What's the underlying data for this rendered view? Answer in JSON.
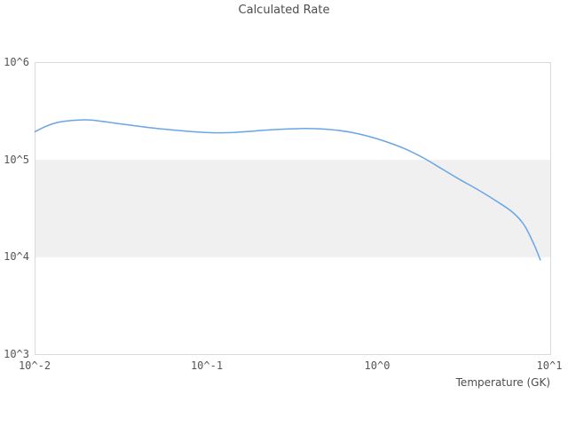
{
  "chart": {
    "title": "Calculated Rate",
    "x_axis_title": "Temperature (GK)",
    "x_tick_labels": [
      "10^-2",
      "10^-1",
      "10^0",
      "10^1"
    ],
    "y_tick_labels": [
      "10^6",
      "10^5",
      "10^4",
      "10^3"
    ],
    "colors": {
      "line": "#6aa5e5",
      "band_fill": "#f0f0f0",
      "frame": "#d9d9d9",
      "tick_text": "#555555",
      "title_text": "#4d4d4d",
      "background": "#ffffff"
    }
  },
  "chart_data": {
    "type": "line",
    "title": "Calculated Rate",
    "xlabel": "Temperature (GK)",
    "ylabel": "",
    "x_scale": "log",
    "y_scale": "log",
    "xlim": [
      0.01,
      10
    ],
    "ylim": [
      1000,
      1000000
    ],
    "x_tick_labels": [
      "10^-2",
      "10^-1",
      "10^0",
      "10^1"
    ],
    "y_tick_labels": [
      "10^3",
      "10^4",
      "10^5",
      "10^6"
    ],
    "grid": false,
    "legend": false,
    "shaded_band_y": {
      "from": 10000,
      "to": 100000
    },
    "series": [
      {
        "name": "Calculated Rate",
        "x": [
          0.01,
          0.0115,
          0.013,
          0.015,
          0.018,
          0.021,
          0.025,
          0.03,
          0.037,
          0.046,
          0.058,
          0.072,
          0.09,
          0.11,
          0.14,
          0.175,
          0.22,
          0.28,
          0.35,
          0.43,
          0.55,
          0.7,
          0.9,
          1.15,
          1.45,
          1.85,
          2.35,
          3.0,
          3.8,
          4.8,
          6.0,
          7.0,
          8.0,
          8.7
        ],
        "y": [
          195000,
          220000,
          238000,
          250000,
          257000,
          257000,
          248000,
          237000,
          226000,
          215000,
          206000,
          199000,
          193000,
          190000,
          191000,
          196000,
          202000,
          207000,
          210000,
          209000,
          203000,
          191000,
          172000,
          150000,
          128000,
          103000,
          80000,
          62000,
          49000,
          38000,
          29000,
          21500,
          13500,
          9400
        ]
      }
    ]
  }
}
